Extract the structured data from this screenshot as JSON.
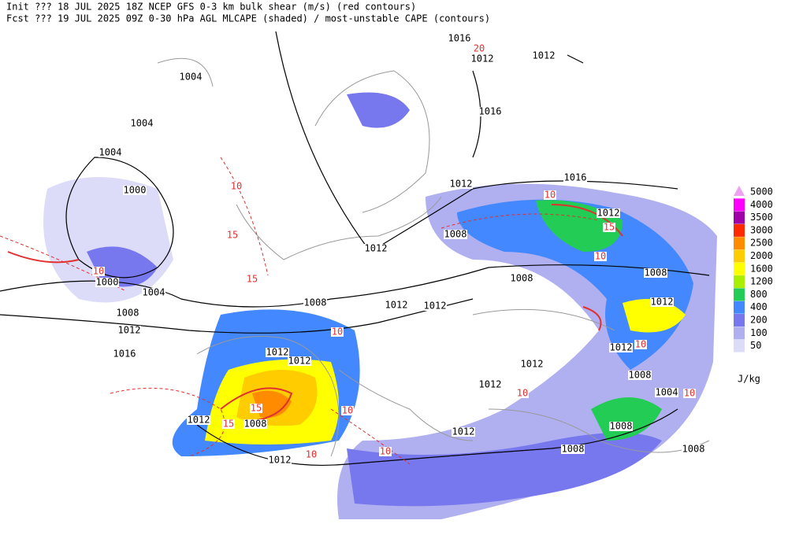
{
  "header": {
    "lines": [
      "Init  ??? 18 JUL 2025 18Z  NCEP GFS 0-3 km bulk shear (m/s) (red contours)",
      "Fcst ??? 19 JUL 2025 09Z  0-30 hPa AGL MLCAPE (shaded) / most-unstable CAPE (contours)"
    ]
  },
  "legend": {
    "unit": "J/kg",
    "levels": [
      {
        "value": 5000,
        "color": "#f0a0f0"
      },
      {
        "value": 4000,
        "color": "#ff00ff"
      },
      {
        "value": 3500,
        "color": "#a000a8"
      },
      {
        "value": 3000,
        "color": "#ff2a00"
      },
      {
        "value": 2500,
        "color": "#ff8c00"
      },
      {
        "value": 2000,
        "color": "#ffcc00"
      },
      {
        "value": 1600,
        "color": "#ffff00"
      },
      {
        "value": 1200,
        "color": "#aaee00"
      },
      {
        "value": 800,
        "color": "#22cc55"
      },
      {
        "value": 400,
        "color": "#4488ff"
      },
      {
        "value": 200,
        "color": "#7878ee"
      },
      {
        "value": 100,
        "color": "#b0b0f0"
      },
      {
        "value": 50,
        "color": "#dcdcf8"
      }
    ]
  },
  "pressure_labels": [
    1004,
    1004,
    1004,
    1000,
    1000,
    1004,
    1008,
    1012,
    1016,
    1012,
    1008,
    1008,
    1012,
    1012,
    1008,
    1008,
    1012,
    1016,
    1012,
    1012,
    1016,
    1012,
    1012,
    1016,
    1012,
    1012,
    1012,
    1012,
    1012,
    1008,
    1004,
    1008,
    1008,
    1012,
    1012,
    1008,
    1012,
    1008
  ],
  "shear_labels": [
    20,
    10,
    15,
    10,
    10,
    10,
    10,
    10,
    10,
    10,
    15,
    15,
    10,
    10,
    15,
    15,
    10
  ]
}
